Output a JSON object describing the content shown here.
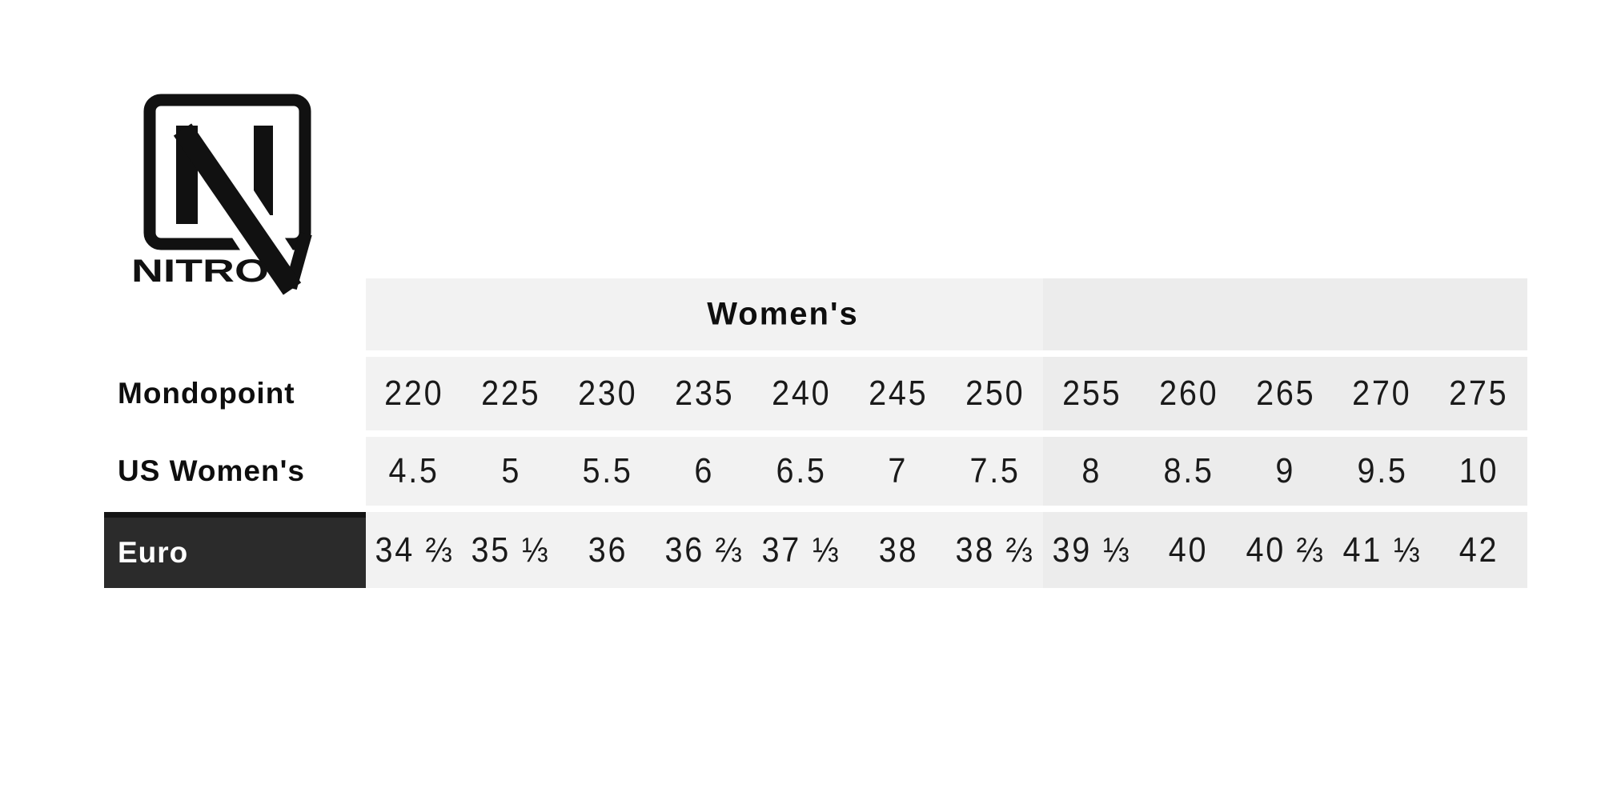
{
  "page": {
    "background": "#ffffff"
  },
  "logo": {
    "wordmark": "NITRO"
  },
  "colors": {
    "group1_bg": "#f2f2f2",
    "group2_bg": "#ececec",
    "euro_label_bg": "#2b2b2b",
    "euro_label_border": "#141414",
    "euro_label_text": "#ffffff",
    "text": "#1a1a1a",
    "label_text": "#0e0e0e",
    "logo_color": "#111111"
  },
  "chart_data": {
    "type": "table",
    "title": "Women's",
    "group_header": {
      "label": "Women's",
      "over_columns": [
        "220",
        "225",
        "230",
        "235",
        "240",
        "245",
        "250"
      ]
    },
    "group_split_index": 7,
    "row_headers": [
      "Mondopoint",
      "US Women's",
      "Euro"
    ],
    "rows": [
      {
        "label": "Mondopoint",
        "values": [
          "220",
          "225",
          "230",
          "235",
          "240",
          "245",
          "250",
          "255",
          "260",
          "265",
          "270",
          "275"
        ]
      },
      {
        "label": "US Women's",
        "values": [
          "4.5",
          "5",
          "5.5",
          "6",
          "6.5",
          "7",
          "7.5",
          "8",
          "8.5",
          "9",
          "9.5",
          "10"
        ]
      },
      {
        "label": "Euro",
        "values": [
          "34 ⅔",
          "35 ⅓",
          "36",
          "36 ⅔",
          "37 ⅓",
          "38",
          "38 ⅔",
          "39 ⅓",
          "40",
          "40 ⅔",
          "41 ⅓",
          "42"
        ]
      }
    ]
  }
}
